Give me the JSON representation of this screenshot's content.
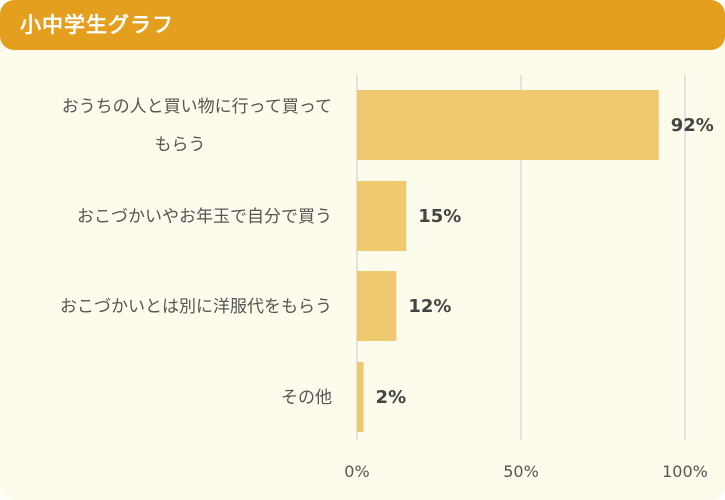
{
  "header": {
    "title": "小中学生グラフ"
  },
  "colors": {
    "header_bg": "#e49f1e",
    "panel_bg": "#fdfbeb",
    "bar": "#efc96f",
    "grid": "#d9d9d9"
  },
  "chart_data": {
    "type": "bar",
    "orientation": "horizontal",
    "categories": [
      [
        "おうちの人と買い物に行って買って",
        "もらう"
      ],
      [
        "おこづかいやお年玉で自分で買う"
      ],
      [
        "おこづかいとは別に洋服代をもらう"
      ],
      [
        "その他"
      ]
    ],
    "values": [
      92,
      15,
      12,
      2
    ],
    "value_labels": [
      "92%",
      "15%",
      "12%",
      "2%"
    ],
    "xlim": [
      0,
      100
    ],
    "x_ticks": [
      0,
      50,
      100
    ],
    "x_tick_labels": [
      "0%",
      "50%",
      "100%"
    ],
    "grid": true
  }
}
